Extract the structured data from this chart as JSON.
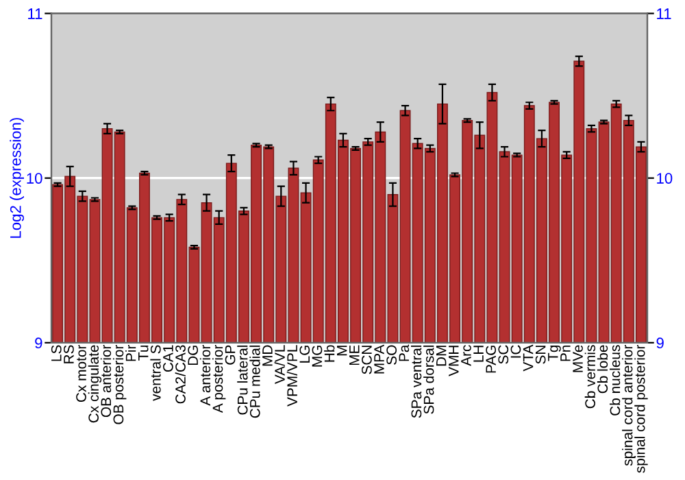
{
  "chart_data": {
    "type": "bar",
    "ylabel": "Log2 (expression)",
    "categories": [
      "LS",
      "RS",
      "Cx motor",
      "Cx cingulate",
      "OB anterior",
      "OB posterior",
      "Pir",
      "Tu",
      "ventral S",
      "CA1",
      "CA2/CA3",
      "DG",
      "A anterior",
      "A posterior",
      "GP",
      "CPu lateral",
      "CPu medial",
      "MD",
      "VA/VL",
      "VPM/VPL",
      "LG",
      "MG",
      "Hb",
      "M",
      "ME",
      "SCN",
      "MPA",
      "SO",
      "Pa",
      "SPa ventral",
      "SPa dorsal",
      "DM",
      "VMH",
      "Arc",
      "LH",
      "PAG",
      "SC",
      "IC",
      "VTA",
      "SN",
      "Tg",
      "Pn",
      "MVe",
      "Cb vermis",
      "Cb lobe",
      "Cb nucleus",
      "spinal cord anterior",
      "spinal cord posterior"
    ],
    "values": [
      9.96,
      10.01,
      9.89,
      9.87,
      10.3,
      10.28,
      9.82,
      10.03,
      9.76,
      9.76,
      9.87,
      9.58,
      9.85,
      9.76,
      10.09,
      9.8,
      10.2,
      10.19,
      9.89,
      10.06,
      9.91,
      10.11,
      10.45,
      10.23,
      10.18,
      10.22,
      10.28,
      9.9,
      10.41,
      10.21,
      10.18,
      10.45,
      10.02,
      10.35,
      10.26,
      10.52,
      10.16,
      10.14,
      10.44,
      10.24,
      10.46,
      10.14,
      10.71,
      10.3,
      10.34,
      10.45,
      10.35,
      10.19
    ],
    "errors": [
      0.01,
      0.06,
      0.03,
      0.01,
      0.03,
      0.01,
      0.01,
      0.01,
      0.01,
      0.02,
      0.03,
      0.01,
      0.05,
      0.04,
      0.05,
      0.02,
      0.01,
      0.01,
      0.06,
      0.04,
      0.06,
      0.02,
      0.04,
      0.04,
      0.01,
      0.02,
      0.06,
      0.07,
      0.03,
      0.03,
      0.02,
      0.12,
      0.01,
      0.01,
      0.08,
      0.05,
      0.03,
      0.01,
      0.02,
      0.05,
      0.01,
      0.02,
      0.03,
      0.02,
      0.01,
      0.02,
      0.03,
      0.03
    ],
    "color": "#b33030",
    "ylim": [
      9,
      11
    ],
    "yticks": [
      9,
      10,
      11
    ],
    "y2lim": [
      9,
      11
    ],
    "y2ticks": [
      9,
      10,
      11
    ],
    "grid": "y"
  }
}
